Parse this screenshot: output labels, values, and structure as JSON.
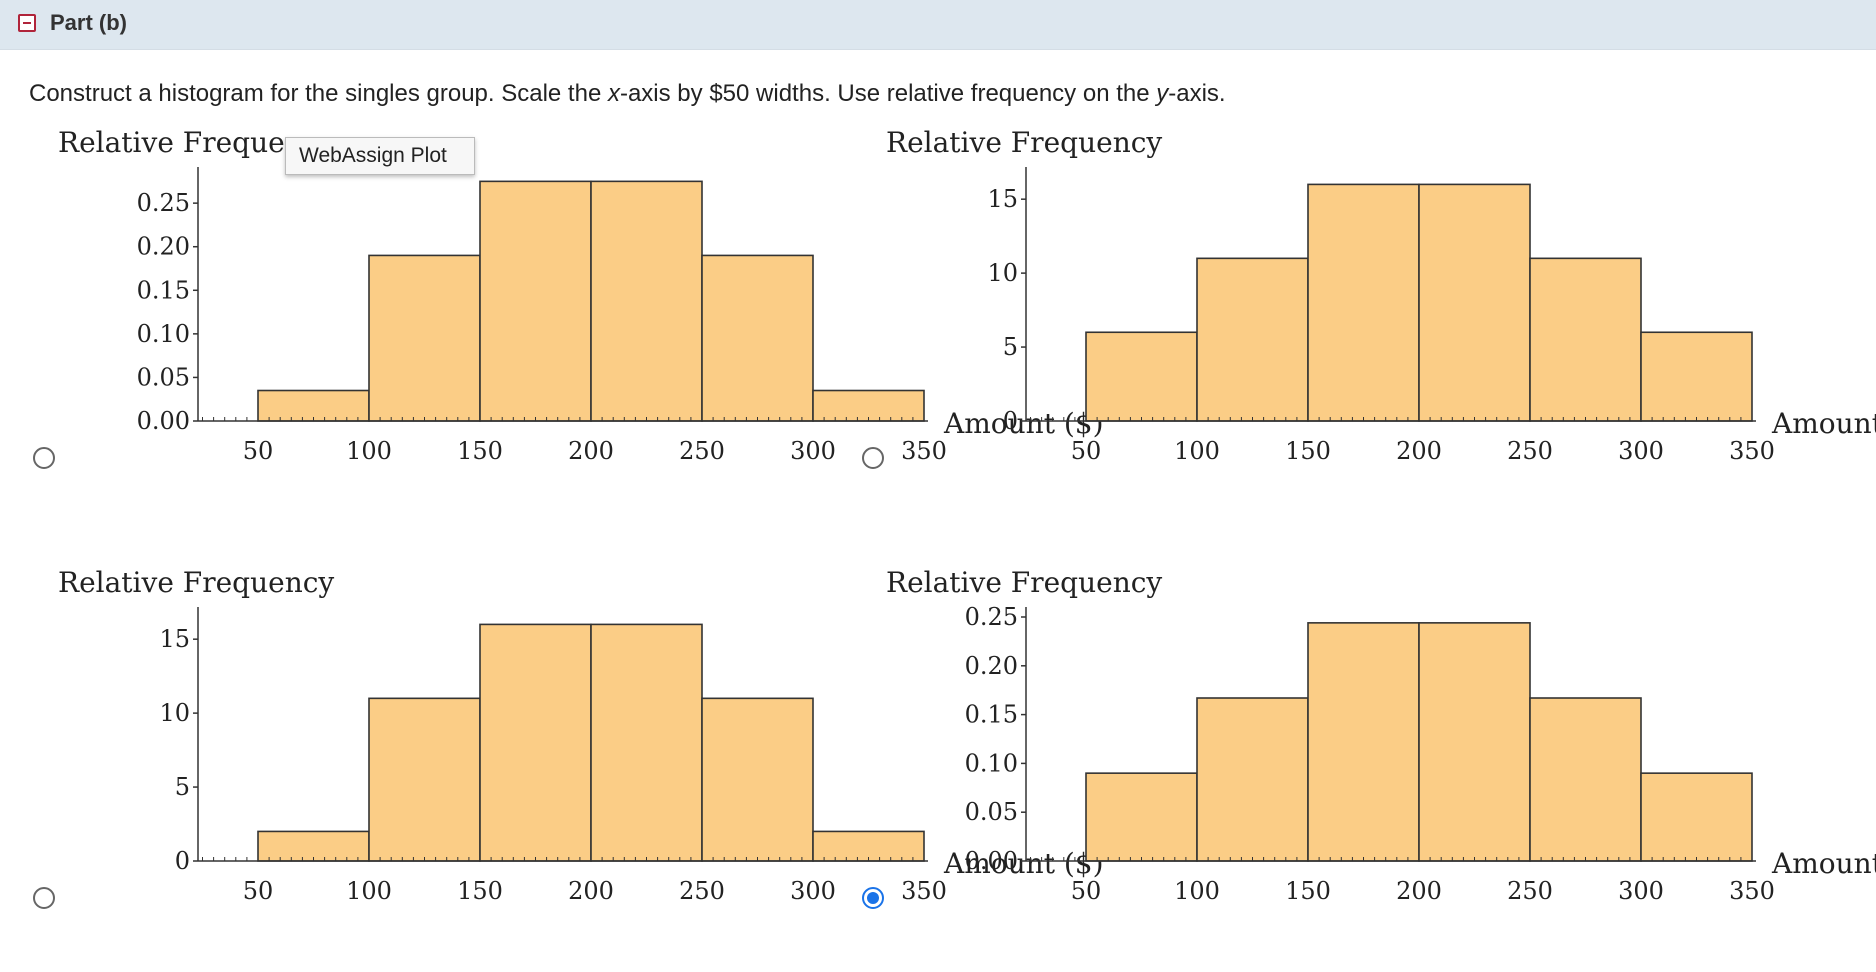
{
  "part": {
    "title": "Part (b)"
  },
  "question": {
    "text_before_x": "Construct a histogram for the singles group. Scale the ",
    "x_var": "x",
    "text_middle": "-axis by $50 widths. Use relative frequency on the ",
    "y_var": "y",
    "text_end": "-axis."
  },
  "tooltip": {
    "text": "WebAssign Plot"
  },
  "colors": {
    "bar_fill": "#fbcd86",
    "bar_stroke": "#333333",
    "radio_selected": "#1a73e8"
  },
  "options": [
    {
      "id": "a",
      "selected": false
    },
    {
      "id": "b",
      "selected": false
    },
    {
      "id": "c",
      "selected": false
    },
    {
      "id": "d",
      "selected": true
    }
  ],
  "chart_data": [
    {
      "type": "bar",
      "ylabel": "Relative Frequency",
      "xlabel": "Amount ($)",
      "bin_edges": [
        50,
        100,
        150,
        200,
        250,
        300,
        350
      ],
      "values": [
        0.035,
        0.19,
        0.275,
        0.275,
        0.19,
        0.035
      ],
      "ylim": [
        0,
        0.28
      ],
      "yticks": [
        0,
        0.05,
        0.1,
        0.15,
        0.2,
        0.25
      ],
      "ytick_labels": [
        "0.00",
        "0.05",
        "0.10",
        "0.15",
        "0.20",
        "0.25"
      ],
      "xticks": [
        50,
        100,
        150,
        200,
        250,
        300,
        350
      ],
      "xtick_labels": [
        "50",
        "100",
        "150",
        "200",
        "250",
        "300",
        "350"
      ]
    },
    {
      "type": "bar",
      "ylabel": "Relative Frequency",
      "xlabel": "Amount ($)",
      "bin_edges": [
        50,
        100,
        150,
        200,
        250,
        300,
        350
      ],
      "values": [
        6,
        11,
        16,
        16,
        11,
        6
      ],
      "ylim": [
        0,
        16.5
      ],
      "yticks": [
        0,
        5,
        10,
        15
      ],
      "ytick_labels": [
        "0",
        "5",
        "10",
        "15"
      ],
      "xticks": [
        50,
        100,
        150,
        200,
        250,
        300,
        350
      ],
      "xtick_labels": [
        "50",
        "100",
        "150",
        "200",
        "250",
        "300",
        "350"
      ]
    },
    {
      "type": "bar",
      "ylabel": "Relative Frequency",
      "xlabel": "Amount ($)",
      "bin_edges": [
        50,
        100,
        150,
        200,
        250,
        300,
        350
      ],
      "values": [
        2,
        11,
        16,
        16,
        11,
        2
      ],
      "ylim": [
        0,
        16.5
      ],
      "yticks": [
        0,
        5,
        10,
        15
      ],
      "ytick_labels": [
        "0",
        "5",
        "10",
        "15"
      ],
      "xticks": [
        50,
        100,
        150,
        200,
        250,
        300,
        350
      ],
      "xtick_labels": [
        "50",
        "100",
        "150",
        "200",
        "250",
        "300",
        "350"
      ]
    },
    {
      "type": "bar",
      "ylabel": "Relative Frequency",
      "xlabel": "Amount ($)",
      "bin_edges": [
        50,
        100,
        150,
        200,
        250,
        300,
        350
      ],
      "values": [
        0.09,
        0.167,
        0.244,
        0.244,
        0.167,
        0.09
      ],
      "ylim": [
        0,
        0.25
      ],
      "yticks": [
        0,
        0.05,
        0.1,
        0.15,
        0.2,
        0.25
      ],
      "ytick_labels": [
        "0.00",
        "0.05",
        "0.10",
        "0.15",
        "0.20",
        "0.25"
      ],
      "xticks": [
        50,
        100,
        150,
        200,
        250,
        300,
        350
      ],
      "xtick_labels": [
        "50",
        "100",
        "150",
        "200",
        "250",
        "300",
        "350"
      ]
    }
  ]
}
